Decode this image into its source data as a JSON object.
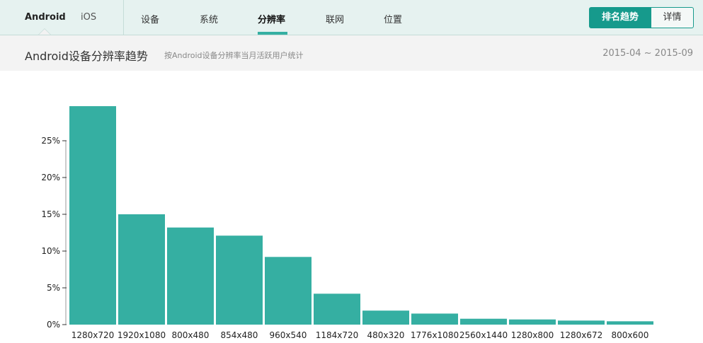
{
  "header": {
    "platforms": [
      {
        "label": "Android",
        "active": true
      },
      {
        "label": "iOS",
        "active": false
      }
    ],
    "tabs": [
      {
        "label": "设备",
        "active": false
      },
      {
        "label": "系统",
        "active": false
      },
      {
        "label": "分辨率",
        "active": true
      },
      {
        "label": "联网",
        "active": false
      },
      {
        "label": "位置",
        "active": false
      }
    ],
    "view_toggle": {
      "rank_label": "排名趋势",
      "detail_label": "详情",
      "selected": "rank"
    }
  },
  "subheader": {
    "title": "Android设备分辨率趋势",
    "subtitle": "按Android设备分辨率当月活跃用户统计",
    "date_range": "2015-04 ~ 2015-09"
  },
  "colors": {
    "accent": "#169a8c",
    "bar": "#35afa2",
    "header_bg": "#e6f2f0",
    "subbar_bg": "#f3f3f3"
  },
  "chart_data": {
    "type": "bar",
    "categories": [
      "1280x720",
      "1920x1080",
      "800x480",
      "854x480",
      "960x540",
      "1184x720",
      "480x320",
      "1776x1080",
      "2560x1440",
      "1280x800",
      "1280x672",
      "800x600"
    ],
    "values": [
      29.7,
      15.0,
      13.2,
      12.1,
      9.2,
      4.2,
      1.9,
      1.5,
      0.8,
      0.7,
      0.55,
      0.45
    ],
    "y_ticks": [
      "0%",
      "5%",
      "10%",
      "15%",
      "20%",
      "25%"
    ],
    "y_tick_values": [
      0,
      5,
      10,
      15,
      20,
      25
    ],
    "ylim": [
      0,
      30
    ],
    "y_unit": "%",
    "grid": false,
    "legend": "none"
  }
}
